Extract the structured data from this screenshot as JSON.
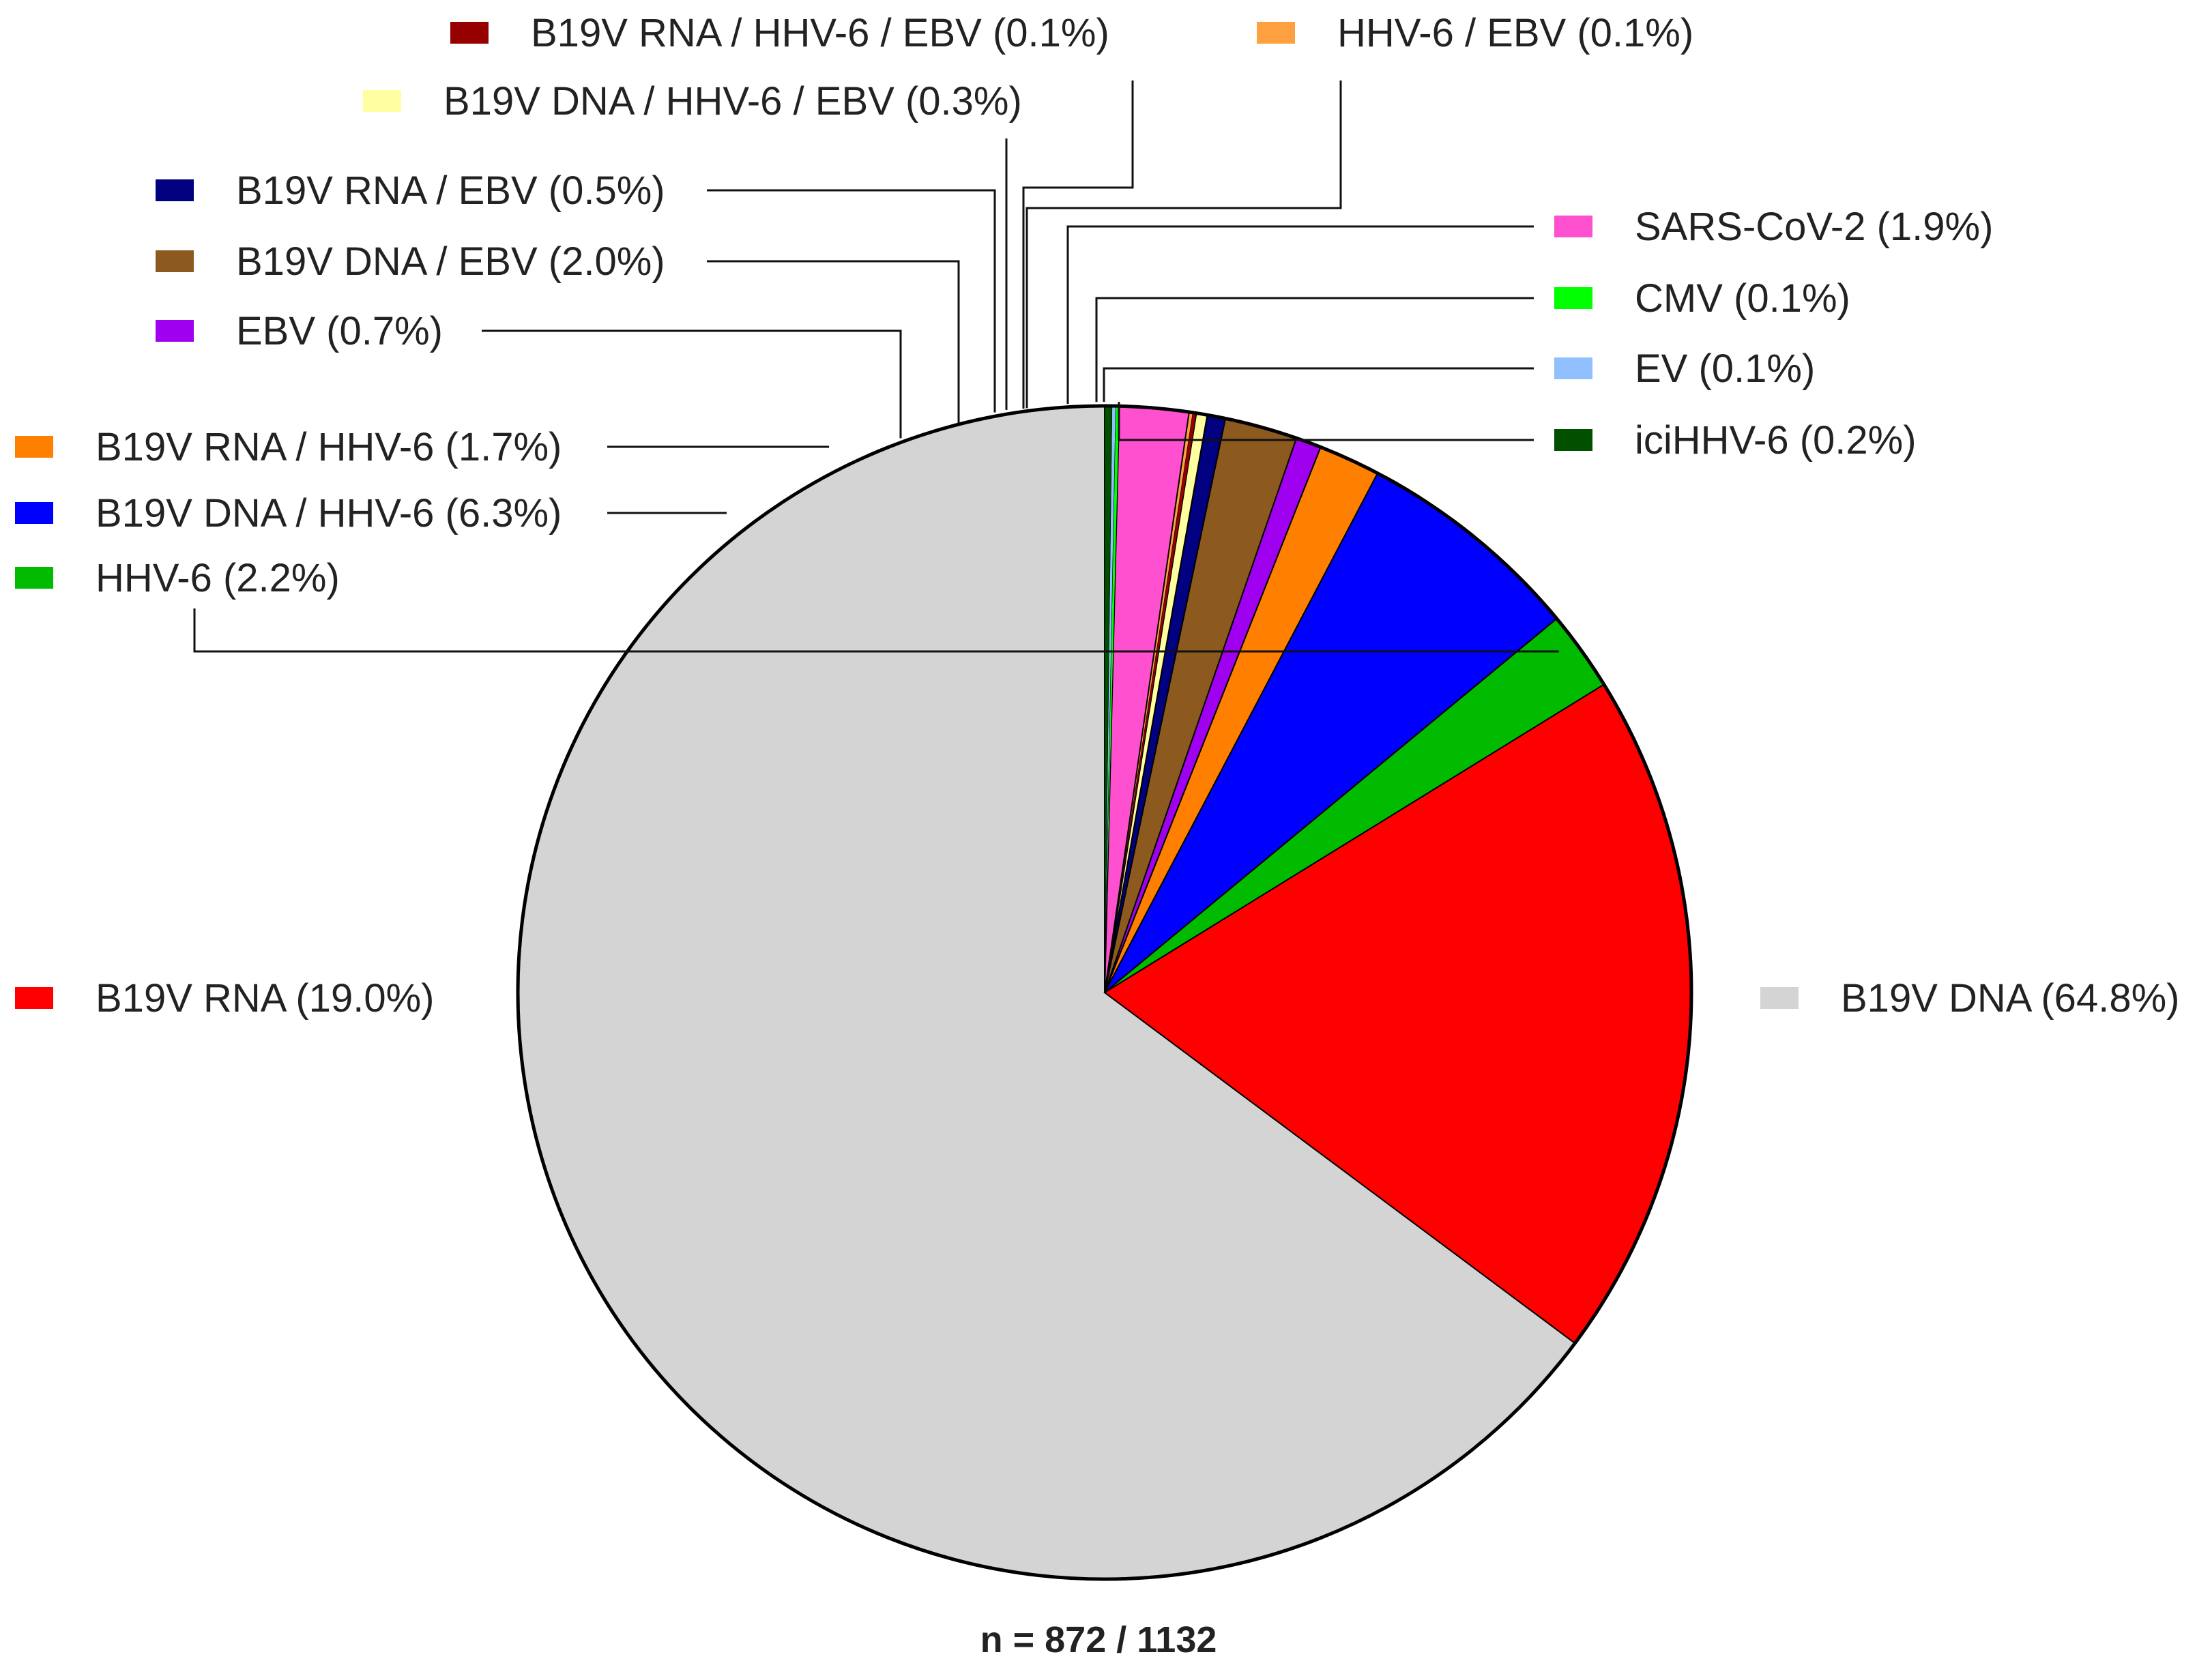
{
  "chart_data": {
    "type": "pie",
    "start_angle_deg": 0,
    "direction": "counterclockwise",
    "slices": [
      {
        "label": "B19V DNA (64.8%)",
        "value": 64.8,
        "color": "#d4d4d4"
      },
      {
        "label": "B19V RNA (19.0%)",
        "value": 19.0,
        "color": "#ff0000"
      },
      {
        "label": "HHV-6 (2.2%)",
        "value": 2.2,
        "color": "#00bb00"
      },
      {
        "label": "B19V DNA / HHV-6 (6.3%)",
        "value": 6.3,
        "color": "#0000ff"
      },
      {
        "label": "B19V RNA / HHV-6 (1.7%)",
        "value": 1.7,
        "color": "#ff8000"
      },
      {
        "label": "EBV (0.7%)",
        "value": 0.7,
        "color": "#a000f0"
      },
      {
        "label": "B19V DNA / EBV (2.0%)",
        "value": 2.0,
        "color": "#8c5a1e"
      },
      {
        "label": "B19V RNA / EBV (0.5%)",
        "value": 0.5,
        "color": "#000080"
      },
      {
        "label": "B19V DNA / HHV-6 / EBV (0.3%)",
        "value": 0.3,
        "color": "#ffffa0"
      },
      {
        "label": "B19V RNA / HHV-6 / EBV (0.1%)",
        "value": 0.1,
        "color": "#960000"
      },
      {
        "label": "HHV-6 / EBV (0.1%)",
        "value": 0.1,
        "color": "#ffa040"
      },
      {
        "label": "SARS-CoV-2 (1.9%)",
        "value": 1.9,
        "color": "#ff50d0"
      },
      {
        "label": "CMV (0.1%)",
        "value": 0.1,
        "color": "#00ff00"
      },
      {
        "label": "EV (0.1%)",
        "value": 0.1,
        "color": "#90c0ff"
      },
      {
        "label": "iciHHV-6 (0.2%)",
        "value": 0.2,
        "color": "#005000"
      }
    ],
    "footnote": "n = 872 / 1132"
  }
}
